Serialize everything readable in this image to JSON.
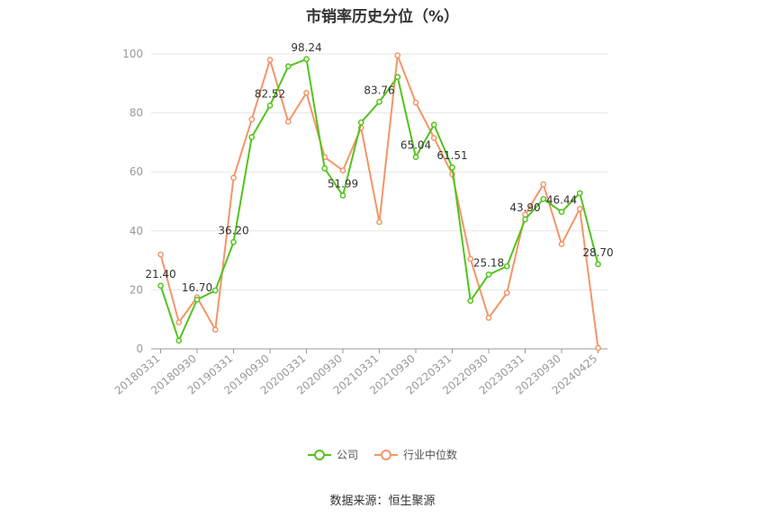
{
  "chart_data": {
    "type": "line",
    "title": "市销率历史分位（%）",
    "ylim": [
      0,
      100
    ],
    "yticks": [
      0,
      20,
      40,
      60,
      80,
      100
    ],
    "xtick_labels": [
      "20180331",
      "20180930",
      "20190331",
      "20190930",
      "20200331",
      "20200930",
      "20210331",
      "20210930",
      "20220331",
      "20220930",
      "20230331",
      "20230930",
      "20240425"
    ],
    "grid": true,
    "legend_position": "bottom",
    "series": [
      {
        "name": "公司",
        "color": "#52c41a",
        "values": [
          21.4,
          2.8,
          16.7,
          19.8,
          36.2,
          71.8,
          82.52,
          95.8,
          98.24,
          61.2,
          51.99,
          76.8,
          83.76,
          92.2,
          65.04,
          76.0,
          61.51,
          16.3,
          25.18,
          28.0,
          43.9,
          50.8,
          46.44,
          52.8,
          28.7
        ],
        "data_labels": {
          "0": "21.40",
          "2": "16.70",
          "4": "36.20",
          "6": "82.52",
          "8": "98.24",
          "10": "51.99",
          "12": "83.76",
          "14": "65.04",
          "16": "61.51",
          "18": "25.18",
          "20": "43.90",
          "22": "46.44",
          "24": "28.70"
        }
      },
      {
        "name": "行业中位数",
        "color": "#f4956a",
        "values": [
          32.0,
          9.0,
          17.5,
          6.5,
          58.0,
          77.8,
          98.0,
          77.0,
          86.8,
          65.0,
          60.5,
          75.0,
          43.0,
          99.5,
          83.5,
          71.5,
          59.2,
          30.5,
          10.5,
          19.0,
          45.5,
          55.8,
          35.5,
          47.5,
          0.3
        ]
      }
    ]
  },
  "source_text": "数据来源：恒生聚源"
}
